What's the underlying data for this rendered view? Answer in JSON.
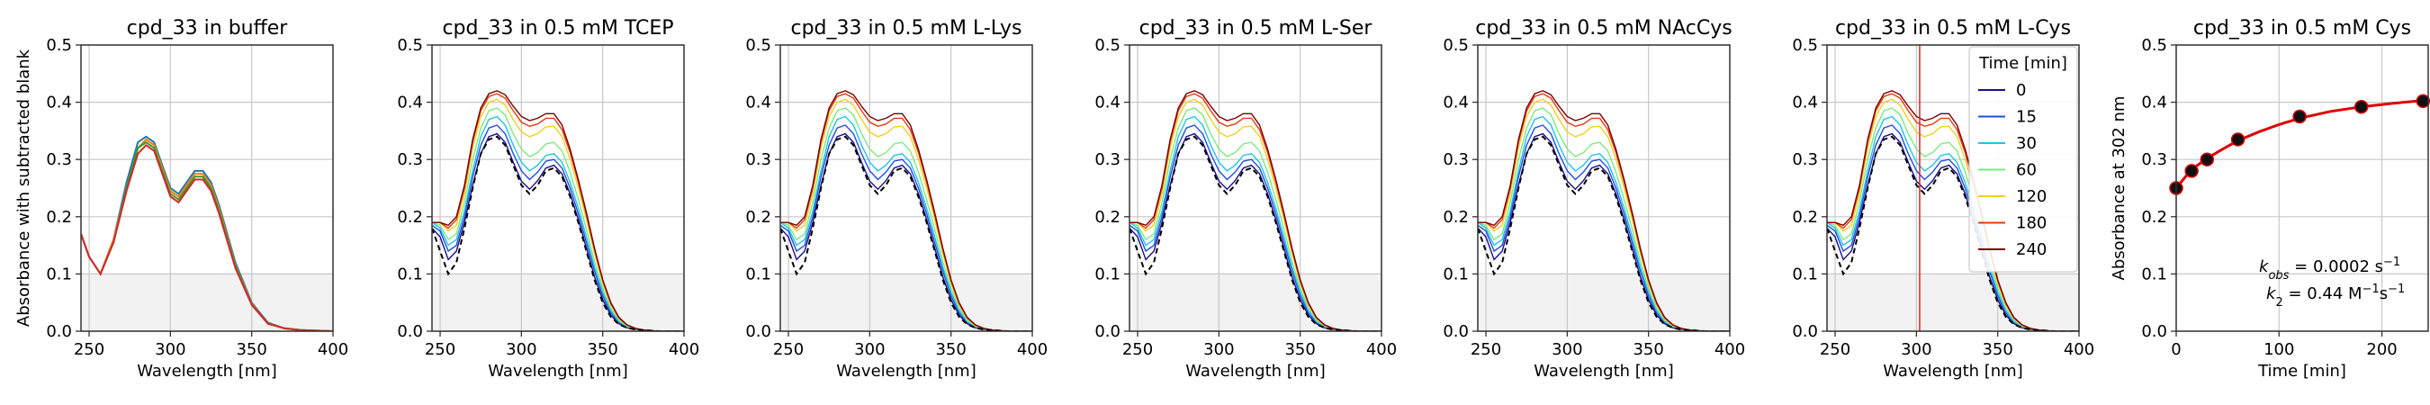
{
  "figure": {
    "colors": {
      "axes": "#333333",
      "grid": "#c8c8c8",
      "blank_shade": "#f2f2f2",
      "dashed_blank": "#000000",
      "highlight_line": "#e02020",
      "fit_line": "#e00000",
      "points": "#111111"
    }
  },
  "chart_data": [
    {
      "type": "line",
      "title": "cpd_33 in buffer",
      "xlabel": "Wavelength [nm]",
      "ylabel": "Absorbance with subtracted blank",
      "xlim": [
        245,
        400
      ],
      "ylim": [
        0,
        0.5
      ],
      "xticks": [
        250,
        300,
        350,
        400
      ],
      "yticks": [
        "0.0",
        "0.1",
        "0.2",
        "0.3",
        "0.4",
        "0.5"
      ],
      "grid": true,
      "shaded_band": [
        0,
        0.1
      ],
      "series": [
        {
          "color": "#1f77b4",
          "x": [
            245,
            250,
            257,
            265,
            273,
            280,
            285,
            290,
            295,
            300,
            305,
            310,
            315,
            320,
            325,
            330,
            340,
            350,
            360,
            370,
            380,
            390,
            400
          ],
          "y": [
            0.17,
            0.13,
            0.1,
            0.16,
            0.26,
            0.33,
            0.34,
            0.33,
            0.29,
            0.25,
            0.24,
            0.26,
            0.28,
            0.28,
            0.26,
            0.22,
            0.12,
            0.05,
            0.015,
            0.005,
            0.002,
            0.001,
            0.0
          ]
        },
        {
          "color": "#ff7f0e",
          "x": [
            245,
            250,
            257,
            265,
            273,
            280,
            285,
            290,
            295,
            300,
            305,
            310,
            315,
            320,
            325,
            330,
            340,
            350,
            360,
            370,
            380,
            390,
            400
          ],
          "y": [
            0.17,
            0.13,
            0.1,
            0.16,
            0.25,
            0.32,
            0.335,
            0.325,
            0.285,
            0.245,
            0.235,
            0.255,
            0.275,
            0.275,
            0.255,
            0.215,
            0.115,
            0.048,
            0.014,
            0.005,
            0.002,
            0.001,
            0.0
          ]
        },
        {
          "color": "#2ca02c",
          "x": [
            245,
            250,
            257,
            265,
            273,
            280,
            285,
            290,
            295,
            300,
            305,
            310,
            315,
            320,
            325,
            330,
            340,
            350,
            360,
            370,
            380,
            390,
            400
          ],
          "y": [
            0.17,
            0.13,
            0.1,
            0.155,
            0.25,
            0.32,
            0.33,
            0.32,
            0.28,
            0.24,
            0.23,
            0.25,
            0.27,
            0.27,
            0.25,
            0.21,
            0.113,
            0.047,
            0.014,
            0.005,
            0.002,
            0.001,
            0.0
          ]
        },
        {
          "color": "#d62728",
          "x": [
            245,
            250,
            257,
            265,
            273,
            280,
            285,
            290,
            295,
            300,
            305,
            310,
            315,
            320,
            325,
            330,
            340,
            350,
            360,
            370,
            380,
            390,
            400
          ],
          "y": [
            0.17,
            0.13,
            0.1,
            0.155,
            0.245,
            0.31,
            0.325,
            0.315,
            0.275,
            0.235,
            0.225,
            0.245,
            0.265,
            0.265,
            0.245,
            0.205,
            0.11,
            0.046,
            0.013,
            0.005,
            0.002,
            0.001,
            0.0
          ]
        }
      ]
    },
    {
      "type": "line",
      "title": "cpd_33 in 0.5 mM TCEP",
      "xlabel": "Wavelength [nm]",
      "xlim": [
        245,
        400
      ],
      "ylim": [
        0,
        0.5
      ],
      "xticks": [
        250,
        300,
        350,
        400
      ],
      "yticks": [
        "0.0",
        "0.1",
        "0.2",
        "0.3",
        "0.4",
        "0.5"
      ],
      "grid": true,
      "shaded_band": [
        0,
        0.1
      ],
      "has_blank": true,
      "series_family": "time"
    },
    {
      "type": "line",
      "title": "cpd_33 in 0.5 mM L-Lys",
      "xlabel": "Wavelength [nm]",
      "xlim": [
        245,
        400
      ],
      "ylim": [
        0,
        0.5
      ],
      "xticks": [
        250,
        300,
        350,
        400
      ],
      "yticks": [
        "0.0",
        "0.1",
        "0.2",
        "0.3",
        "0.4",
        "0.5"
      ],
      "grid": true,
      "shaded_band": [
        0,
        0.1
      ],
      "has_blank": true,
      "series_family": "time"
    },
    {
      "type": "line",
      "title": "cpd_33 in 0.5 mM L-Ser",
      "xlabel": "Wavelength [nm]",
      "xlim": [
        245,
        400
      ],
      "ylim": [
        0,
        0.5
      ],
      "xticks": [
        250,
        300,
        350,
        400
      ],
      "yticks": [
        "0.0",
        "0.1",
        "0.2",
        "0.3",
        "0.4",
        "0.5"
      ],
      "grid": true,
      "shaded_band": [
        0,
        0.1
      ],
      "has_blank": true,
      "series_family": "time"
    },
    {
      "type": "line",
      "title": "cpd_33 in 0.5 mM NAcCys",
      "xlabel": "Wavelength [nm]",
      "xlim": [
        245,
        400
      ],
      "ylim": [
        0,
        0.5
      ],
      "xticks": [
        250,
        300,
        350,
        400
      ],
      "yticks": [
        "0.0",
        "0.1",
        "0.2",
        "0.3",
        "0.4",
        "0.5"
      ],
      "grid": true,
      "shaded_band": [
        0,
        0.1
      ],
      "has_blank": true,
      "series_family": "time"
    },
    {
      "type": "line",
      "title": "cpd_33 in 0.5 mM L-Cys",
      "xlabel": "Wavelength [nm]",
      "xlim": [
        245,
        400
      ],
      "ylim": [
        0,
        0.5
      ],
      "xticks": [
        250,
        300,
        350,
        400
      ],
      "yticks": [
        "0.0",
        "0.1",
        "0.2",
        "0.3",
        "0.4",
        "0.5"
      ],
      "grid": true,
      "shaded_band": [
        0,
        0.1
      ],
      "has_blank": true,
      "vline_x": 302,
      "series_family": "time",
      "legend": {
        "title": "Time [min]",
        "placement": "top-right",
        "entries": [
          {
            "label": "0",
            "color": "#1a0d8c"
          },
          {
            "label": "15",
            "color": "#1f4fe0"
          },
          {
            "label": "30",
            "color": "#1fc4e8"
          },
          {
            "label": "60",
            "color": "#7fe880"
          },
          {
            "label": "120",
            "color": "#f0d020"
          },
          {
            "label": "180",
            "color": "#e83a10"
          },
          {
            "label": "240",
            "color": "#7a0000"
          }
        ]
      }
    },
    {
      "type": "scatter",
      "title": "cpd_33 in 0.5 mM Cys",
      "xlabel": "Time [min]",
      "ylabel": "Absorbance at 302 nm",
      "xlim": [
        0,
        245
      ],
      "ylim": [
        0,
        0.5
      ],
      "xticks": [
        0,
        100,
        200
      ],
      "yticks": [
        "0.0",
        "0.1",
        "0.2",
        "0.3",
        "0.4",
        "0.5"
      ],
      "grid": true,
      "points": {
        "x": [
          0,
          15,
          30,
          60,
          120,
          180,
          240
        ],
        "y": [
          0.25,
          0.28,
          0.3,
          0.335,
          0.375,
          0.392,
          0.402
        ]
      },
      "fit": {
        "x": [
          0,
          10,
          20,
          30,
          45,
          60,
          80,
          100,
          120,
          150,
          180,
          210,
          245
        ],
        "y": [
          0.25,
          0.272,
          0.289,
          0.302,
          0.318,
          0.333,
          0.348,
          0.361,
          0.372,
          0.384,
          0.392,
          0.398,
          0.404
        ]
      },
      "annotations": {
        "kobs_label": "k",
        "kobs_sub": "obs",
        "kobs_value": " = 0.0002 s",
        "kobs_exp": "−1",
        "k2_label": "k",
        "k2_sub": "2",
        "k2_value": " = 0.44 M",
        "k2_exp1": "−1",
        "k2_mid": "s",
        "k2_exp2": "−1"
      }
    }
  ],
  "time_spectra": {
    "x": [
      245,
      250,
      255,
      260,
      265,
      270,
      275,
      280,
      285,
      290,
      295,
      300,
      305,
      310,
      315,
      320,
      325,
      330,
      335,
      340,
      345,
      350,
      355,
      360,
      365,
      370,
      375,
      380,
      385,
      390,
      395,
      400
    ],
    "blank_color": "#000000",
    "blank_y": [
      0.18,
      0.14,
      0.1,
      0.12,
      0.18,
      0.25,
      0.31,
      0.335,
      0.34,
      0.325,
      0.29,
      0.255,
      0.24,
      0.255,
      0.28,
      0.285,
      0.27,
      0.235,
      0.19,
      0.14,
      0.09,
      0.05,
      0.025,
      0.012,
      0.006,
      0.003,
      0.002,
      0.001,
      0.0,
      0.0,
      0.0,
      0.0
    ],
    "series": [
      {
        "name": "0",
        "color": "#1a0d8c",
        "y": [
          0.18,
          0.165,
          0.125,
          0.14,
          0.19,
          0.255,
          0.31,
          0.34,
          0.345,
          0.33,
          0.295,
          0.262,
          0.248,
          0.263,
          0.285,
          0.29,
          0.275,
          0.24,
          0.195,
          0.145,
          0.095,
          0.055,
          0.028,
          0.013,
          0.006,
          0.003,
          0.002,
          0.001,
          0.0,
          0.0,
          0.0,
          0.0
        ]
      },
      {
        "name": "15",
        "color": "#1f4fe0",
        "y": [
          0.185,
          0.175,
          0.14,
          0.15,
          0.2,
          0.27,
          0.325,
          0.355,
          0.36,
          0.345,
          0.31,
          0.28,
          0.265,
          0.278,
          0.297,
          0.3,
          0.285,
          0.25,
          0.205,
          0.155,
          0.105,
          0.062,
          0.032,
          0.015,
          0.007,
          0.004,
          0.002,
          0.001,
          0.0,
          0.0,
          0.0,
          0.0
        ]
      },
      {
        "name": "30",
        "color": "#1fc4e8",
        "y": [
          0.19,
          0.18,
          0.15,
          0.16,
          0.21,
          0.28,
          0.34,
          0.37,
          0.375,
          0.36,
          0.325,
          0.295,
          0.28,
          0.29,
          0.307,
          0.31,
          0.295,
          0.26,
          0.215,
          0.165,
          0.112,
          0.068,
          0.036,
          0.017,
          0.008,
          0.004,
          0.002,
          0.001,
          0.0,
          0.0,
          0.0,
          0.0
        ]
      },
      {
        "name": "60",
        "color": "#7fe880",
        "y": [
          0.19,
          0.185,
          0.16,
          0.17,
          0.225,
          0.3,
          0.355,
          0.385,
          0.39,
          0.378,
          0.345,
          0.318,
          0.305,
          0.312,
          0.327,
          0.33,
          0.315,
          0.278,
          0.23,
          0.178,
          0.122,
          0.075,
          0.04,
          0.019,
          0.009,
          0.004,
          0.002,
          0.001,
          0.0,
          0.0,
          0.0,
          0.0
        ]
      },
      {
        "name": "120",
        "color": "#f0d020",
        "y": [
          0.19,
          0.19,
          0.175,
          0.185,
          0.24,
          0.32,
          0.375,
          0.4,
          0.405,
          0.395,
          0.37,
          0.348,
          0.34,
          0.345,
          0.357,
          0.358,
          0.34,
          0.3,
          0.25,
          0.195,
          0.136,
          0.084,
          0.046,
          0.022,
          0.01,
          0.005,
          0.002,
          0.001,
          0.0,
          0.0,
          0.0,
          0.0
        ]
      },
      {
        "name": "180",
        "color": "#e83a10",
        "y": [
          0.19,
          0.19,
          0.18,
          0.195,
          0.25,
          0.33,
          0.385,
          0.41,
          0.415,
          0.407,
          0.385,
          0.365,
          0.358,
          0.362,
          0.372,
          0.372,
          0.352,
          0.312,
          0.26,
          0.203,
          0.142,
          0.088,
          0.048,
          0.023,
          0.011,
          0.005,
          0.002,
          0.001,
          0.0,
          0.0,
          0.0,
          0.0
        ]
      },
      {
        "name": "240",
        "color": "#7a0000",
        "y": [
          0.19,
          0.19,
          0.185,
          0.2,
          0.255,
          0.335,
          0.39,
          0.415,
          0.42,
          0.413,
          0.393,
          0.375,
          0.368,
          0.372,
          0.38,
          0.38,
          0.36,
          0.318,
          0.265,
          0.207,
          0.145,
          0.09,
          0.05,
          0.024,
          0.011,
          0.005,
          0.002,
          0.001,
          0.0,
          0.0,
          0.0,
          0.0
        ]
      }
    ]
  }
}
